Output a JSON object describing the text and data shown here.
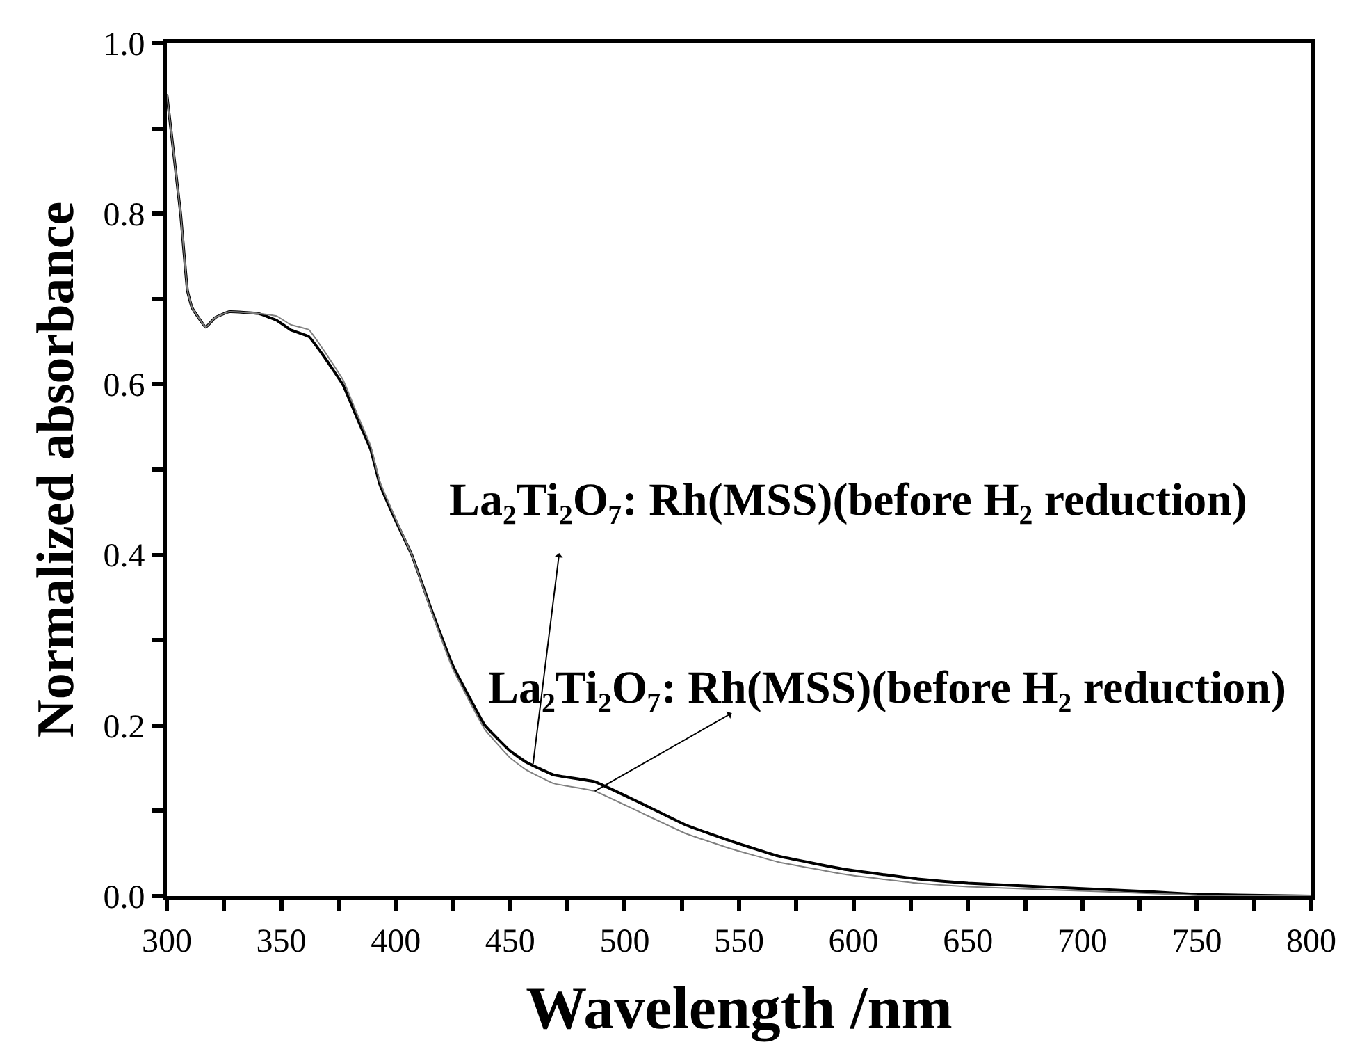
{
  "chart_data": {
    "type": "line",
    "xlabel": "Wavelength /nm",
    "ylabel": "Normalized absorbance",
    "x": [
      300,
      306,
      309,
      311,
      317,
      321,
      327,
      340,
      348,
      354,
      362,
      368,
      377,
      383,
      389,
      393,
      400,
      407,
      415,
      425,
      439,
      450,
      457,
      469,
      487,
      507,
      527,
      547,
      567,
      597,
      628,
      650,
      690,
      730,
      750,
      800
    ],
    "series": [
      {
        "color": "#000000",
        "values": [
          0.94,
          0.8,
          0.71,
          0.69,
          0.667,
          0.678,
          0.685,
          0.683,
          0.675,
          0.664,
          0.656,
          0.635,
          0.599,
          0.561,
          0.524,
          0.483,
          0.44,
          0.4,
          0.34,
          0.27,
          0.2,
          0.17,
          0.157,
          0.142,
          0.134,
          0.109,
          0.083,
          0.064,
          0.047,
          0.031,
          0.02,
          0.015,
          0.01,
          0.005,
          0.002,
          0.0
        ]
      },
      {
        "color": "#808080",
        "values": [
          0.94,
          0.8,
          0.71,
          0.69,
          0.667,
          0.678,
          0.685,
          0.683,
          0.68,
          0.67,
          0.664,
          0.642,
          0.605,
          0.566,
          0.528,
          0.486,
          0.442,
          0.4,
          0.338,
          0.266,
          0.195,
          0.162,
          0.148,
          0.132,
          0.123,
          0.098,
          0.073,
          0.055,
          0.04,
          0.025,
          0.015,
          0.011,
          0.007,
          0.003,
          0.001,
          0.0
        ]
      }
    ],
    "annotations": [
      {
        "text": "La₂Ti₂O₇: Rh(MSS)(before H₂ reduction)",
        "x": 460,
        "y": 0.155
      },
      {
        "text": "La₂Ti₂O₇: Rh(MSS)(before H₂ reduction)",
        "x": 487,
        "y": 0.123
      }
    ],
    "xlim": [
      300,
      800
    ],
    "xticks": [
      300,
      {
        "value": 325,
        "label": null
      },
      350,
      {
        "value": 375,
        "label": null
      },
      400,
      {
        "value": 425,
        "label": null
      },
      450,
      {
        "value": 475,
        "label": null
      },
      500,
      {
        "value": 525,
        "label": null
      },
      550,
      {
        "value": 575,
        "label": null
      },
      600,
      {
        "value": 625,
        "label": null
      },
      650,
      {
        "value": 675,
        "label": null
      },
      700,
      {
        "value": 725,
        "label": null
      },
      750,
      {
        "value": 775,
        "label": null
      },
      800
    ],
    "ylim": [
      0,
      1
    ],
    "yticks": [
      {
        "value": 0,
        "label": "0.0"
      },
      {
        "value": 0.1,
        "label": null
      },
      {
        "value": 0.2,
        "label": "0.2"
      },
      {
        "value": 0.3,
        "label": null
      },
      {
        "value": 0.4,
        "label": "0.4"
      },
      {
        "value": 0.5,
        "label": null
      },
      {
        "value": 0.6,
        "label": "0.6"
      },
      {
        "value": 0.7,
        "label": null
      },
      {
        "value": 0.8,
        "label": "0.8"
      },
      {
        "value": 0.9,
        "label": null
      },
      {
        "value": 1.0,
        "label": "1.0"
      }
    ],
    "line_style": "solid",
    "marker": "none"
  }
}
